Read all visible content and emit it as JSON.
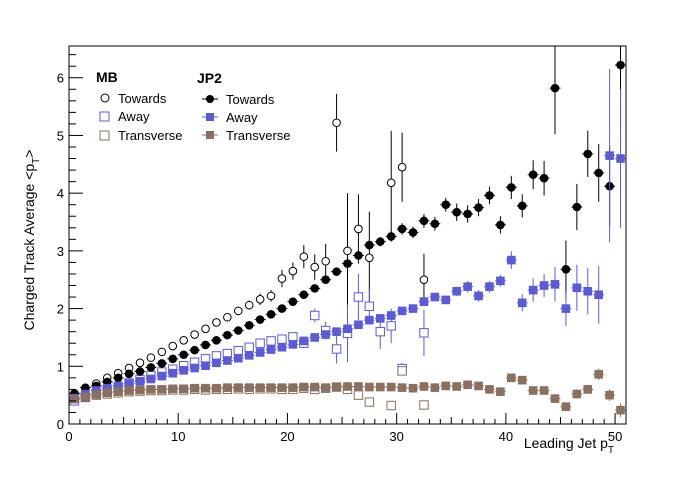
{
  "chart_data": {
    "type": "scatter",
    "xlabel": "Leading Jet p",
    "xlabel_sub": "T",
    "ylabel": "Charged Track Average <p",
    "ylabel_sub": "T",
    "ylabel_close": ">",
    "xlim": [
      0,
      51
    ],
    "ylim": [
      0,
      6.55
    ],
    "xticks": [
      0,
      10,
      20,
      30,
      40,
      50
    ],
    "yticks": [
      0,
      1,
      2,
      3,
      4,
      5,
      6
    ],
    "grid": false,
    "legend_placement": "top-left",
    "legend_groups": [
      {
        "title": "MB",
        "series": [
          "Towards",
          "Away",
          "Transverse"
        ]
      },
      {
        "title": "JP2",
        "series": [
          "Towards",
          "Away",
          "Transverse"
        ]
      }
    ],
    "series": [
      {
        "name": "Towards",
        "group": "MB",
        "marker": "open-circle",
        "color": "#000000",
        "x": [
          0.5,
          1.5,
          2.5,
          3.5,
          4.5,
          5.5,
          6.5,
          7.5,
          8.5,
          9.5,
          10.5,
          11.5,
          12.5,
          13.5,
          14.5,
          15.5,
          16.5,
          17.5,
          18.5,
          19.5,
          20.5,
          21.5,
          22.5,
          23.5,
          24.5,
          25.5,
          26.5,
          27.5,
          29.5,
          30.5,
          32.5
        ],
        "y": [
          0.52,
          0.6,
          0.7,
          0.8,
          0.88,
          0.97,
          1.06,
          1.15,
          1.25,
          1.35,
          1.45,
          1.55,
          1.65,
          1.76,
          1.85,
          1.96,
          2.06,
          2.16,
          2.22,
          2.52,
          2.65,
          2.9,
          2.72,
          2.82,
          5.22,
          3.0,
          3.38,
          2.88,
          4.18,
          4.45,
          2.5
        ],
        "err": [
          0.03,
          0.03,
          0.03,
          0.03,
          0.03,
          0.03,
          0.03,
          0.03,
          0.03,
          0.04,
          0.04,
          0.04,
          0.04,
          0.05,
          0.06,
          0.07,
          0.08,
          0.1,
          0.1,
          0.15,
          0.15,
          0.2,
          0.22,
          0.3,
          0.5,
          1.0,
          0.6,
          0.8,
          0.9,
          0.6,
          0.45
        ]
      },
      {
        "name": "Away",
        "group": "MB",
        "marker": "open-square",
        "color": "#5b5bd6",
        "x": [
          0.5,
          1.5,
          2.5,
          3.5,
          4.5,
          5.5,
          6.5,
          7.5,
          8.5,
          9.5,
          10.5,
          11.5,
          12.5,
          13.5,
          14.5,
          15.5,
          16.5,
          17.5,
          18.5,
          19.5,
          20.5,
          21.5,
          22.5,
          23.5,
          24.5,
          25.5,
          26.5,
          27.5,
          28.5,
          29.5,
          30.5,
          32.5
        ],
        "y": [
          0.4,
          0.46,
          0.53,
          0.58,
          0.64,
          0.71,
          0.77,
          0.84,
          0.9,
          0.95,
          1.01,
          1.07,
          1.13,
          1.18,
          1.22,
          1.27,
          1.33,
          1.4,
          1.44,
          1.47,
          1.51,
          1.4,
          1.88,
          1.62,
          1.3,
          1.57,
          2.2,
          2.04,
          1.6,
          1.7,
          0.96,
          1.58
        ],
        "err": [
          0.02,
          0.02,
          0.02,
          0.02,
          0.02,
          0.02,
          0.02,
          0.02,
          0.02,
          0.02,
          0.03,
          0.03,
          0.03,
          0.03,
          0.03,
          0.04,
          0.04,
          0.05,
          0.05,
          0.06,
          0.06,
          0.08,
          0.12,
          0.15,
          0.25,
          0.5,
          0.4,
          0.3,
          0.3,
          0.3,
          0.1,
          0.4
        ]
      },
      {
        "name": "Transverse",
        "group": "MB",
        "marker": "open-square",
        "color": "#8b6f5f",
        "x": [
          0.5,
          1.5,
          2.5,
          3.5,
          4.5,
          5.5,
          6.5,
          7.5,
          8.5,
          9.5,
          10.5,
          11.5,
          12.5,
          13.5,
          14.5,
          15.5,
          16.5,
          17.5,
          18.5,
          19.5,
          20.5,
          21.5,
          22.5,
          23.5,
          24.5,
          25.5,
          26.5,
          27.5,
          29.5,
          30.5,
          32.5
        ],
        "y": [
          0.44,
          0.47,
          0.5,
          0.52,
          0.54,
          0.56,
          0.57,
          0.58,
          0.58,
          0.59,
          0.59,
          0.6,
          0.59,
          0.6,
          0.6,
          0.61,
          0.6,
          0.61,
          0.61,
          0.6,
          0.6,
          0.62,
          0.6,
          0.62,
          0.64,
          0.6,
          0.5,
          0.38,
          0.32,
          0.92,
          0.33
        ],
        "err": [
          0.01,
          0.01,
          0.01,
          0.01,
          0.01,
          0.01,
          0.01,
          0.01,
          0.01,
          0.01,
          0.01,
          0.01,
          0.01,
          0.01,
          0.01,
          0.01,
          0.01,
          0.01,
          0.01,
          0.02,
          0.02,
          0.02,
          0.02,
          0.03,
          0.03,
          0.04,
          0.05,
          0.05,
          0.05,
          0.08,
          0.05
        ]
      },
      {
        "name": "Towards",
        "group": "JP2",
        "marker": "filled-circle",
        "color": "#000000",
        "x": [
          0.5,
          1.5,
          2.5,
          3.5,
          4.5,
          5.5,
          6.5,
          7.5,
          8.5,
          9.5,
          10.5,
          11.5,
          12.5,
          13.5,
          14.5,
          15.5,
          16.5,
          17.5,
          18.5,
          19.5,
          20.5,
          21.5,
          22.5,
          23.5,
          24.5,
          25.5,
          26.5,
          27.5,
          28.5,
          29.5,
          30.5,
          31.5,
          32.5,
          33.5,
          34.5,
          35.5,
          36.5,
          37.5,
          38.5,
          39.5,
          40.5,
          41.5,
          42.5,
          43.5,
          44.5,
          45.5,
          46.5,
          47.5,
          48.5,
          49.5,
          50.5
        ],
        "y": [
          0.53,
          0.63,
          0.66,
          0.73,
          0.8,
          0.87,
          0.91,
          0.98,
          1.05,
          1.13,
          1.2,
          1.28,
          1.37,
          1.45,
          1.54,
          1.62,
          1.71,
          1.81,
          1.9,
          2.0,
          2.12,
          2.24,
          2.35,
          2.5,
          2.64,
          2.78,
          2.92,
          3.1,
          3.16,
          3.25,
          3.38,
          3.32,
          3.52,
          3.47,
          3.8,
          3.67,
          3.64,
          3.75,
          3.96,
          3.45,
          4.1,
          3.78,
          4.32,
          4.26,
          5.82,
          2.68,
          3.76,
          4.68,
          4.35,
          4.12,
          6.22
        ],
        "err": [
          0.01,
          0.01,
          0.01,
          0.01,
          0.01,
          0.01,
          0.01,
          0.01,
          0.01,
          0.01,
          0.01,
          0.01,
          0.02,
          0.02,
          0.02,
          0.02,
          0.02,
          0.03,
          0.03,
          0.03,
          0.04,
          0.04,
          0.05,
          0.05,
          0.06,
          0.06,
          0.07,
          0.08,
          0.08,
          0.09,
          0.1,
          0.1,
          0.12,
          0.12,
          0.12,
          0.15,
          0.15,
          0.15,
          0.15,
          0.15,
          0.2,
          0.2,
          0.25,
          0.3,
          0.8,
          0.5,
          0.4,
          0.4,
          0.5,
          0.7,
          1.1
        ]
      },
      {
        "name": "Away",
        "group": "JP2",
        "marker": "filled-square",
        "color": "#5b5bd6",
        "x": [
          0.5,
          1.5,
          2.5,
          3.5,
          4.5,
          5.5,
          6.5,
          7.5,
          8.5,
          9.5,
          10.5,
          11.5,
          12.5,
          13.5,
          14.5,
          15.5,
          16.5,
          17.5,
          18.5,
          19.5,
          20.5,
          21.5,
          22.5,
          23.5,
          24.5,
          25.5,
          26.5,
          27.5,
          28.5,
          29.5,
          30.5,
          31.5,
          32.5,
          33.5,
          34.5,
          35.5,
          36.5,
          37.5,
          38.5,
          39.5,
          40.5,
          41.5,
          42.5,
          43.5,
          44.5,
          45.5,
          46.5,
          47.5,
          48.5,
          49.5,
          50.5
        ],
        "y": [
          0.45,
          0.52,
          0.58,
          0.62,
          0.66,
          0.7,
          0.74,
          0.78,
          0.83,
          0.88,
          0.93,
          0.97,
          1.01,
          1.06,
          1.1,
          1.14,
          1.19,
          1.24,
          1.29,
          1.33,
          1.38,
          1.44,
          1.5,
          1.55,
          1.6,
          1.65,
          1.72,
          1.8,
          1.83,
          1.88,
          1.96,
          2.0,
          2.12,
          2.2,
          2.15,
          2.3,
          2.38,
          2.22,
          2.38,
          2.48,
          2.84,
          2.1,
          2.32,
          2.4,
          2.42,
          2.0,
          2.36,
          2.3,
          2.24,
          4.65,
          4.6
        ],
        "err": [
          0.01,
          0.01,
          0.01,
          0.01,
          0.01,
          0.01,
          0.01,
          0.01,
          0.01,
          0.01,
          0.01,
          0.01,
          0.01,
          0.01,
          0.02,
          0.02,
          0.02,
          0.02,
          0.02,
          0.02,
          0.03,
          0.03,
          0.03,
          0.03,
          0.04,
          0.04,
          0.05,
          0.05,
          0.05,
          0.06,
          0.06,
          0.06,
          0.07,
          0.07,
          0.07,
          0.08,
          0.1,
          0.1,
          0.1,
          0.1,
          0.15,
          0.15,
          0.2,
          0.2,
          0.3,
          0.3,
          0.4,
          0.4,
          0.5,
          1.5,
          1.2
        ]
      },
      {
        "name": "Transverse",
        "group": "JP2",
        "marker": "filled-square",
        "color": "#8b6f5f",
        "x": [
          0.5,
          1.5,
          2.5,
          3.5,
          4.5,
          5.5,
          6.5,
          7.5,
          8.5,
          9.5,
          10.5,
          11.5,
          12.5,
          13.5,
          14.5,
          15.5,
          16.5,
          17.5,
          18.5,
          19.5,
          20.5,
          21.5,
          22.5,
          23.5,
          24.5,
          25.5,
          26.5,
          27.5,
          28.5,
          29.5,
          30.5,
          31.5,
          32.5,
          33.5,
          34.5,
          35.5,
          36.5,
          37.5,
          38.5,
          39.5,
          40.5,
          41.5,
          42.5,
          43.5,
          44.5,
          45.5,
          46.5,
          47.5,
          48.5,
          49.5,
          50.5
        ],
        "y": [
          0.43,
          0.47,
          0.51,
          0.54,
          0.56,
          0.58,
          0.59,
          0.6,
          0.6,
          0.61,
          0.61,
          0.62,
          0.62,
          0.62,
          0.63,
          0.63,
          0.63,
          0.63,
          0.63,
          0.63,
          0.63,
          0.64,
          0.64,
          0.63,
          0.64,
          0.65,
          0.65,
          0.64,
          0.64,
          0.64,
          0.63,
          0.62,
          0.65,
          0.63,
          0.66,
          0.65,
          0.68,
          0.66,
          0.6,
          0.56,
          0.8,
          0.76,
          0.58,
          0.58,
          0.44,
          0.3,
          0.52,
          0.6,
          0.86,
          0.5,
          0.24
        ],
        "err": [
          0.01,
          0.01,
          0.01,
          0.01,
          0.01,
          0.01,
          0.01,
          0.01,
          0.01,
          0.01,
          0.01,
          0.01,
          0.01,
          0.01,
          0.01,
          0.01,
          0.01,
          0.01,
          0.01,
          0.01,
          0.01,
          0.01,
          0.01,
          0.01,
          0.01,
          0.01,
          0.01,
          0.01,
          0.01,
          0.01,
          0.02,
          0.02,
          0.02,
          0.02,
          0.02,
          0.02,
          0.03,
          0.03,
          0.03,
          0.03,
          0.05,
          0.05,
          0.05,
          0.05,
          0.06,
          0.06,
          0.08,
          0.08,
          0.1,
          0.1,
          0.12
        ]
      }
    ]
  }
}
